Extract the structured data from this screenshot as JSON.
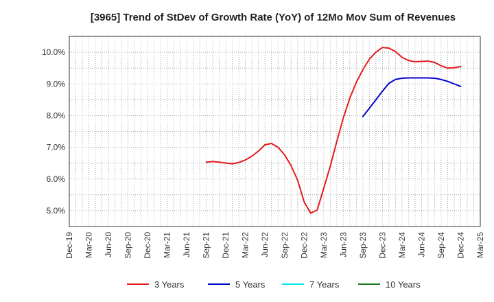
{
  "chart_data": {
    "type": "line",
    "title": "[3965]  Trend of StDev of Growth Rate (YoY) of 12Mo Mov Sum of Revenues",
    "xlabel": "",
    "ylabel": "",
    "ylim": [
      4.5,
      10.5
    ],
    "y_ticks": [
      5.0,
      6.0,
      7.0,
      8.0,
      9.0,
      10.0
    ],
    "y_tick_labels": [
      "5.0%",
      "6.0%",
      "7.0%",
      "8.0%",
      "9.0%",
      "10.0%"
    ],
    "x_tick_labels": [
      "Dec-19",
      "Mar-20",
      "Jun-20",
      "Sep-20",
      "Dec-20",
      "Mar-21",
      "Jun-21",
      "Sep-21",
      "Dec-21",
      "Mar-22",
      "Jun-22",
      "Sep-22",
      "Dec-22",
      "Mar-23",
      "Jun-23",
      "Sep-23",
      "Dec-23",
      "Mar-24",
      "Jun-24",
      "Sep-24",
      "Dec-24",
      "Mar-25"
    ],
    "x_range_months": [
      0,
      63
    ],
    "grid": true,
    "legend_position": "bottom",
    "series": [
      {
        "name": "3 Years",
        "color": "#e31a1c",
        "points": [
          [
            21,
            6.53
          ],
          [
            22,
            6.55
          ],
          [
            23,
            6.53
          ],
          [
            24,
            6.5
          ],
          [
            25,
            6.48
          ],
          [
            26,
            6.52
          ],
          [
            27,
            6.6
          ],
          [
            28,
            6.72
          ],
          [
            29,
            6.88
          ],
          [
            30,
            7.08
          ],
          [
            31,
            7.12
          ],
          [
            32,
            7.0
          ],
          [
            33,
            6.76
          ],
          [
            34,
            6.42
          ],
          [
            35,
            5.96
          ],
          [
            36,
            5.28
          ],
          [
            37,
            4.92
          ],
          [
            38,
            5.02
          ],
          [
            39,
            5.7
          ],
          [
            40,
            6.4
          ],
          [
            41,
            7.18
          ],
          [
            42,
            7.92
          ],
          [
            43,
            8.55
          ],
          [
            44,
            9.05
          ],
          [
            45,
            9.45
          ],
          [
            46,
            9.78
          ],
          [
            47,
            10.0
          ],
          [
            48,
            10.15
          ],
          [
            49,
            10.13
          ],
          [
            50,
            10.02
          ],
          [
            51,
            9.84
          ],
          [
            52,
            9.74
          ],
          [
            53,
            9.7
          ],
          [
            54,
            9.71
          ],
          [
            55,
            9.72
          ],
          [
            56,
            9.68
          ],
          [
            57,
            9.57
          ],
          [
            58,
            9.5
          ],
          [
            59,
            9.51
          ],
          [
            60,
            9.55
          ]
        ]
      },
      {
        "name": "5 Years",
        "color": "#0000cc",
        "points": [
          [
            45,
            7.97
          ],
          [
            46,
            8.23
          ],
          [
            47,
            8.5
          ],
          [
            48,
            8.77
          ],
          [
            49,
            9.02
          ],
          [
            50,
            9.14
          ],
          [
            51,
            9.18
          ],
          [
            52,
            9.19
          ],
          [
            53,
            9.19
          ],
          [
            54,
            9.19
          ],
          [
            55,
            9.19
          ],
          [
            56,
            9.18
          ],
          [
            57,
            9.14
          ],
          [
            58,
            9.08
          ],
          [
            59,
            9.0
          ],
          [
            60,
            8.92
          ]
        ]
      },
      {
        "name": "7 Years",
        "color": "#00e5ee",
        "points": []
      },
      {
        "name": "10 Years",
        "color": "#1a7a1a",
        "points": []
      }
    ]
  }
}
